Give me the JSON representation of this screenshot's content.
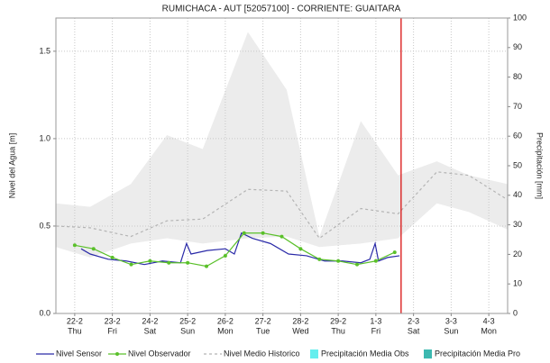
{
  "chart_data": {
    "type": "line",
    "title": "RUMICHACA - AUT [52057100] - CORRIENTE: GUAITARA",
    "y_label": "Nivel del Agua [m]",
    "y2_label": "Precipitación [mm]",
    "xlim": [
      -0.5,
      11.5
    ],
    "xticks": [
      {
        "value": 0,
        "label": "22-2"
      },
      {
        "value": 1,
        "label": "23-2"
      },
      {
        "value": 2,
        "label": "24-2"
      },
      {
        "value": 3,
        "label": "25-2"
      },
      {
        "value": 4,
        "label": "26-2"
      },
      {
        "value": 5,
        "label": "27-2"
      },
      {
        "value": 6,
        "label": "28-2"
      },
      {
        "value": 7,
        "label": "29-2"
      },
      {
        "value": 8,
        "label": "1-3"
      },
      {
        "value": 9,
        "label": "2-3"
      },
      {
        "value": 10,
        "label": "3-3"
      },
      {
        "value": 11,
        "label": "4-3"
      }
    ],
    "xtick_days": [
      "Thu",
      "Fri",
      "Sat",
      "Sun",
      "Mon",
      "Tue",
      "Wed",
      "Thu",
      "Fri",
      "Sat",
      "Sun",
      "Mon"
    ],
    "ylim": [
      0,
      1.69
    ],
    "yticks": [
      {
        "value": 0,
        "label": "0.0"
      },
      0.5,
      {
        "value": 1,
        "label": "1.0"
      },
      1.5
    ],
    "y2lim": [
      0,
      100
    ],
    "y2ticks": [
      0,
      10,
      20,
      30,
      40,
      50,
      60,
      70,
      80,
      90,
      100
    ],
    "grid": true,
    "vline": {
      "x": 8.67,
      "color": "#d81010"
    },
    "series": [
      {
        "name": "Nivel Sensor",
        "color": "#2a2aa8",
        "style": "solid",
        "x": [
          0.17,
          0.41,
          0.89,
          1.37,
          1.85,
          2.33,
          2.81,
          2.97,
          3.09,
          3.52,
          4.0,
          4.24,
          4.43,
          4.72,
          5.2,
          5.68,
          6.16,
          6.64,
          7.12,
          7.6,
          7.84,
          7.98,
          8.07,
          8.31,
          8.63
        ],
        "values": [
          0.37,
          0.34,
          0.31,
          0.3,
          0.28,
          0.3,
          0.29,
          0.4,
          0.34,
          0.36,
          0.37,
          0.34,
          0.46,
          0.43,
          0.4,
          0.34,
          0.33,
          0.3,
          0.3,
          0.29,
          0.31,
          0.4,
          0.3,
          0.32,
          0.33
        ]
      },
      {
        "name": "Nivel Observador",
        "color": "#5ac02a",
        "style": "markers",
        "x": [
          0,
          0.5,
          1,
          1.5,
          2,
          2.5,
          3,
          3.5,
          4,
          4.5,
          5,
          5.5,
          6,
          6.5,
          7,
          7.5,
          8,
          8.5
        ],
        "values": [
          0.39,
          0.37,
          0.32,
          0.28,
          0.3,
          0.29,
          0.29,
          0.27,
          0.33,
          0.46,
          0.46,
          0.44,
          0.37,
          0.31,
          0.3,
          0.28,
          0.3,
          0.35
        ]
      },
      {
        "name": "Nivel Medio Historico",
        "color": "#b4b4b4",
        "style": "dashed",
        "band_color": "#ececec",
        "x": [
          -0.5,
          0.41,
          1.49,
          2.45,
          3.4,
          4.6,
          5.63,
          6.5,
          7.6,
          8.59,
          9.62,
          10.47,
          11.5
        ],
        "values": [
          0.5,
          0.49,
          0.44,
          0.53,
          0.54,
          0.71,
          0.7,
          0.43,
          0.6,
          0.57,
          0.81,
          0.79,
          0.65
        ],
        "upper": [
          0.63,
          0.61,
          0.74,
          1.02,
          0.94,
          1.61,
          1.28,
          0.44,
          1.1,
          0.79,
          0.87,
          0.79,
          0.74
        ],
        "lower": [
          0.38,
          0.32,
          0.4,
          0.43,
          0.4,
          0.43,
          0.44,
          0.38,
          0.4,
          0.43,
          0.63,
          0.58,
          0.48
        ]
      },
      {
        "name": "Precipitación Media Obs",
        "color": "#66eeee",
        "style": "box",
        "axis": "y2",
        "x": [],
        "values": []
      },
      {
        "name": "Precipitación Media Pro",
        "color": "#3cb8b0",
        "style": "box",
        "axis": "y2",
        "x": [],
        "values": []
      }
    ]
  }
}
